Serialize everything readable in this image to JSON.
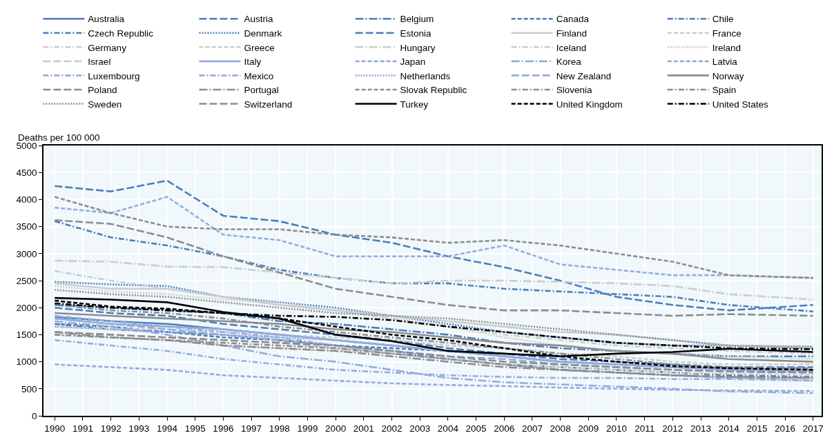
{
  "chart_data": {
    "type": "line",
    "ylabel": "Deaths per 100 000",
    "x": [
      1990,
      1992,
      1994,
      1996,
      1998,
      2000,
      2002,
      2004,
      2006,
      2008,
      2010,
      2012,
      2014,
      2017
    ],
    "xlim": [
      1989.6,
      2017.3
    ],
    "xticks": [
      1990,
      1991,
      1992,
      1993,
      1994,
      1995,
      1996,
      1997,
      1998,
      1999,
      2000,
      2001,
      2002,
      2003,
      2004,
      2005,
      2006,
      2007,
      2008,
      2009,
      2010,
      2011,
      2012,
      2013,
      2014,
      2015,
      2016,
      2017
    ],
    "ylim": [
      0,
      5000
    ],
    "yticks": [
      0,
      500,
      1000,
      1500,
      2000,
      2500,
      3000,
      3500,
      4000,
      4500,
      5000
    ],
    "grid": true,
    "legend": "top",
    "series": [
      {
        "name": "Australia",
        "color": "#4a7ebb",
        "line_style": "solid",
        "values": [
          1830,
          1750,
          1700,
          1600,
          1500,
          1400,
          1300,
          1200,
          1100,
          1000,
          950,
          900,
          870,
          850
        ]
      },
      {
        "name": "Austria",
        "color": "#4a7ebb",
        "line_style": "longdash",
        "values": [
          2000,
          1900,
          1850,
          1700,
          1600,
          1500,
          1400,
          1250,
          1150,
          1050,
          1000,
          950,
          900,
          900
        ]
      },
      {
        "name": "Belgium",
        "color": "#4a7ebb",
        "line_style": "longdashdot",
        "values": [
          2050,
          2000,
          1950,
          1900,
          1750,
          1700,
          1600,
          1500,
          1350,
          1250,
          1200,
          1150,
          1100,
          1100
        ]
      },
      {
        "name": "Canada",
        "color": "#4a7ebb",
        "line_style": "dashed",
        "values": [
          1700,
          1650,
          1550,
          1450,
          1400,
          1300,
          1250,
          1200,
          1100,
          1000,
          950,
          900,
          870,
          850
        ]
      },
      {
        "name": "Chile",
        "color": "#4a7ebb",
        "line_style": "dashdot",
        "values": [
          1700,
          1600,
          1550,
          1500,
          1400,
          1300,
          1200,
          1050,
          950,
          900,
          850,
          800,
          750,
          720
        ]
      },
      {
        "name": "Czech Republic",
        "color": "#4a7ebb",
        "line_style": "dashdot",
        "values": [
          3600,
          3300,
          3150,
          2950,
          2700,
          2550,
          2450,
          2450,
          2350,
          2300,
          2250,
          2200,
          2050,
          1930
        ]
      },
      {
        "name": "Denmark",
        "color": "#4a7ebb",
        "line_style": "dotted",
        "values": [
          2480,
          2430,
          2400,
          2200,
          2100,
          2000,
          1850,
          1700,
          1550,
          1450,
          1350,
          1300,
          1300,
          1280
        ]
      },
      {
        "name": "Estonia",
        "color": "#4a7ebb",
        "line_style": "longdash",
        "values": [
          4250,
          4150,
          4350,
          3700,
          3600,
          3350,
          3200,
          2950,
          2750,
          2500,
          2200,
          2050,
          1950,
          2050
        ]
      },
      {
        "name": "Finland",
        "color": "#cccccc",
        "line_style": "solid",
        "values": [
          2450,
          2350,
          2350,
          2200,
          2050,
          1950,
          1850,
          1750,
          1650,
          1550,
          1500,
          1400,
          1300,
          1250
        ]
      },
      {
        "name": "France",
        "color": "#cccccc",
        "line_style": "dashed",
        "values": [
          1500,
          1450,
          1400,
          1300,
          1250,
          1200,
          1150,
          1050,
          950,
          900,
          850,
          800,
          780,
          760
        ]
      },
      {
        "name": "Germany",
        "color": "#cccccc",
        "line_style": "dashdot",
        "values": [
          2680,
          2500,
          2350,
          2200,
          2050,
          1950,
          1800,
          1650,
          1500,
          1400,
          1300,
          1250,
          1200,
          1150
        ]
      },
      {
        "name": "Greece",
        "color": "#cccccc",
        "line_style": "dashed",
        "values": [
          1650,
          1600,
          1600,
          1550,
          1500,
          1450,
          1400,
          1300,
          1250,
          1150,
          1100,
          1000,
          950,
          950
        ]
      },
      {
        "name": "Hungary",
        "color": "#cccccc",
        "line_style": "longdashdot",
        "values": [
          2870,
          2850,
          2760,
          2750,
          2650,
          2550,
          2450,
          2500,
          2500,
          2480,
          2450,
          2400,
          2250,
          2150
        ]
      },
      {
        "name": "Iceland",
        "color": "#cccccc",
        "line_style": "dashdot",
        "values": [
          1850,
          1750,
          1650,
          1600,
          1500,
          1400,
          1300,
          1200,
          1100,
          1000,
          950,
          900,
          850,
          850
        ]
      },
      {
        "name": "Ireland",
        "color": "#cccccc",
        "line_style": "dotted",
        "values": [
          2400,
          2300,
          2250,
          2150,
          2100,
          1950,
          1800,
          1650,
          1450,
          1300,
          1200,
          1150,
          1100,
          1050
        ]
      },
      {
        "name": "Israel",
        "color": "#cccccc",
        "line_style": "longdash",
        "values": [
          1550,
          1500,
          1450,
          1400,
          1350,
          1250,
          1150,
          1050,
          950,
          850,
          800,
          750,
          700,
          700
        ]
      },
      {
        "name": "Italy",
        "color": "#95abdb",
        "line_style": "solid",
        "values": [
          1800,
          1700,
          1650,
          1600,
          1500,
          1400,
          1300,
          1200,
          1100,
          1000,
          950,
          900,
          850,
          830
        ]
      },
      {
        "name": "Japan",
        "color": "#95abdb",
        "line_style": "dashed",
        "values": [
          950,
          900,
          850,
          750,
          700,
          650,
          600,
          570,
          550,
          520,
          500,
          480,
          470,
          460
        ]
      },
      {
        "name": "Korea",
        "color": "#95abdb",
        "line_style": "longdashdot",
        "values": [
          1750,
          1650,
          1500,
          1300,
          1100,
          1000,
          850,
          700,
          620,
          580,
          540,
          500,
          450,
          420
        ]
      },
      {
        "name": "Latvia",
        "color": "#95abdb",
        "line_style": "dashed",
        "values": [
          3850,
          3750,
          4050,
          3350,
          3250,
          2950,
          2950,
          2950,
          3150,
          2800,
          2700,
          2600,
          2600,
          2550
        ]
      },
      {
        "name": "Luxembourg",
        "color": "#95abdb",
        "line_style": "dashdot",
        "values": [
          1850,
          1750,
          1650,
          1550,
          1450,
          1300,
          1150,
          1050,
          950,
          850,
          800,
          750,
          700,
          650
        ]
      },
      {
        "name": "Mexico",
        "color": "#95abdb",
        "line_style": "dashdot",
        "values": [
          1400,
          1300,
          1200,
          1050,
          950,
          850,
          800,
          750,
          720,
          700,
          700,
          680,
          680,
          650
        ]
      },
      {
        "name": "Netherlands",
        "color": "#95abdb",
        "line_style": "dotted",
        "values": [
          1650,
          1600,
          1550,
          1500,
          1450,
          1400,
          1300,
          1200,
          1100,
          1000,
          950,
          900,
          880,
          850
        ]
      },
      {
        "name": "New Zealand",
        "color": "#95abdb",
        "line_style": "longdash",
        "values": [
          1800,
          1700,
          1600,
          1500,
          1400,
          1300,
          1200,
          1100,
          1050,
          950,
          900,
          850,
          820,
          800
        ]
      },
      {
        "name": "Norway",
        "color": "#8c8c8c",
        "line_style": "solid",
        "values": [
          1900,
          1850,
          1800,
          1750,
          1700,
          1600,
          1550,
          1450,
          1350,
          1300,
          1200,
          1150,
          1050,
          1000
        ]
      },
      {
        "name": "Poland",
        "color": "#8c8c8c",
        "line_style": "longdash",
        "values": [
          3620,
          3550,
          3300,
          2950,
          2650,
          2350,
          2200,
          2050,
          1950,
          1950,
          1900,
          1850,
          1880,
          1850
        ]
      },
      {
        "name": "Portugal",
        "color": "#8c8c8c",
        "line_style": "longdashdot",
        "values": [
          1550,
          1450,
          1400,
          1300,
          1250,
          1200,
          1100,
          1000,
          900,
          850,
          800,
          750,
          720,
          700
        ]
      },
      {
        "name": "Slovak Republic",
        "color": "#8c8c8c",
        "line_style": "dashed",
        "values": [
          4050,
          3750,
          3500,
          3450,
          3450,
          3350,
          3300,
          3200,
          3250,
          3150,
          3000,
          2850,
          2600,
          2550
        ]
      },
      {
        "name": "Slovenia",
        "color": "#8c8c8c",
        "line_style": "dashdot",
        "values": [
          2050,
          1950,
          1900,
          1800,
          1650,
          1550,
          1450,
          1350,
          1250,
          1150,
          1050,
          950,
          900,
          880
        ]
      },
      {
        "name": "Spain",
        "color": "#8c8c8c",
        "line_style": "dashdot",
        "values": [
          1500,
          1450,
          1400,
          1350,
          1300,
          1250,
          1150,
          1050,
          950,
          850,
          800,
          750,
          720,
          700
        ]
      },
      {
        "name": "Sweden",
        "color": "#8c8c8c",
        "line_style": "dotted",
        "values": [
          2330,
          2250,
          2200,
          2100,
          2000,
          1900,
          1850,
          1800,
          1700,
          1600,
          1500,
          1400,
          1300,
          1250
        ]
      },
      {
        "name": "Switzerland",
        "color": "#8c8c8c",
        "line_style": "longdash",
        "values": [
          1550,
          1500,
          1450,
          1400,
          1350,
          1300,
          1200,
          1100,
          1000,
          950,
          900,
          850,
          820,
          800
        ]
      },
      {
        "name": "Turkey",
        "color": "#000000",
        "line_style": "solid",
        "values": [
          2180,
          2150,
          2100,
          1920,
          1800,
          1500,
          1380,
          1200,
          1150,
          1100,
          1150,
          1180,
          1240,
          1180
        ]
      },
      {
        "name": "United Kingdom",
        "color": "#000000",
        "line_style": "dashed",
        "values": [
          2130,
          2020,
          1980,
          1900,
          1800,
          1650,
          1500,
          1400,
          1250,
          1100,
          1000,
          920,
          880,
          850
        ]
      },
      {
        "name": "United States",
        "color": "#000000",
        "line_style": "dashdot",
        "values": [
          2080,
          2000,
          1950,
          1900,
          1850,
          1830,
          1770,
          1650,
          1550,
          1450,
          1350,
          1300,
          1250,
          1230
        ]
      }
    ]
  }
}
